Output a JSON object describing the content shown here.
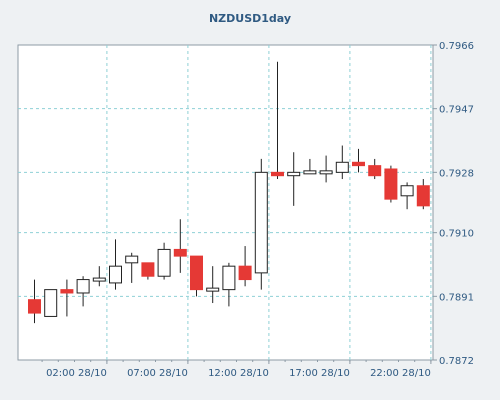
{
  "chart_data": {
    "type": "candlestick",
    "title": "NZDUSD1day",
    "xlabel": "",
    "ylabel": "",
    "ylim": [
      0.7872,
      0.7966
    ],
    "yticks": [
      "0.7872",
      "0.7891",
      "0.7910",
      "0.7928",
      "0.7947",
      "0.7966"
    ],
    "xticks": [
      {
        "index": 4,
        "label": "02:00 28/10"
      },
      {
        "index": 9,
        "label": "07:00 28/10"
      },
      {
        "index": 14,
        "label": "12:00 28/10"
      },
      {
        "index": 19,
        "label": "17:00 28/10"
      },
      {
        "index": 24,
        "label": "22:00 28/10"
      }
    ],
    "grid": true,
    "colors": {
      "up": "#ffffff",
      "down": "#e53935",
      "outline": "#222222",
      "grid": "#8fd0d6",
      "axis": "#2f5a82"
    },
    "candles": [
      {
        "o": 0.789,
        "h": 0.7896,
        "l": 0.7883,
        "c": 0.7886,
        "dir": "down"
      },
      {
        "o": 0.7885,
        "h": 0.7893,
        "l": 0.7885,
        "c": 0.7893,
        "dir": "up"
      },
      {
        "o": 0.7893,
        "h": 0.7896,
        "l": 0.7885,
        "c": 0.7892,
        "dir": "down"
      },
      {
        "o": 0.7892,
        "h": 0.7897,
        "l": 0.7888,
        "c": 0.7896,
        "dir": "up"
      },
      {
        "o": 0.7896,
        "h": 0.79,
        "l": 0.7894,
        "c": 0.7896,
        "dir": "up"
      },
      {
        "o": 0.7895,
        "h": 0.7908,
        "l": 0.7893,
        "c": 0.79,
        "dir": "up"
      },
      {
        "o": 0.7901,
        "h": 0.7904,
        "l": 0.7895,
        "c": 0.7903,
        "dir": "up"
      },
      {
        "o": 0.7901,
        "h": 0.7901,
        "l": 0.7896,
        "c": 0.7897,
        "dir": "down"
      },
      {
        "o": 0.7897,
        "h": 0.7907,
        "l": 0.7896,
        "c": 0.7905,
        "dir": "up"
      },
      {
        "o": 0.7905,
        "h": 0.7914,
        "l": 0.7898,
        "c": 0.7903,
        "dir": "down"
      },
      {
        "o": 0.7903,
        "h": 0.7903,
        "l": 0.7891,
        "c": 0.7893,
        "dir": "down"
      },
      {
        "o": 0.7893,
        "h": 0.79,
        "l": 0.7889,
        "c": 0.7893,
        "dir": "up"
      },
      {
        "o": 0.7893,
        "h": 0.7901,
        "l": 0.7888,
        "c": 0.79,
        "dir": "up"
      },
      {
        "o": 0.79,
        "h": 0.7906,
        "l": 0.7894,
        "c": 0.7896,
        "dir": "down"
      },
      {
        "o": 0.7898,
        "h": 0.7932,
        "l": 0.7893,
        "c": 0.7928,
        "dir": "up"
      },
      {
        "o": 0.7928,
        "h": 0.7961,
        "l": 0.7926,
        "c": 0.7927,
        "dir": "down"
      },
      {
        "o": 0.7927,
        "h": 0.7934,
        "l": 0.7918,
        "c": 0.7928,
        "dir": "up"
      },
      {
        "o": 0.7928,
        "h": 0.7932,
        "l": 0.7928,
        "c": 0.7928,
        "dir": "up"
      },
      {
        "o": 0.7928,
        "h": 0.7933,
        "l": 0.7925,
        "c": 0.7928,
        "dir": "up"
      },
      {
        "o": 0.7928,
        "h": 0.7936,
        "l": 0.7926,
        "c": 0.7931,
        "dir": "up"
      },
      {
        "o": 0.7931,
        "h": 0.7935,
        "l": 0.7928,
        "c": 0.793,
        "dir": "down"
      },
      {
        "o": 0.793,
        "h": 0.7932,
        "l": 0.7926,
        "c": 0.7927,
        "dir": "down"
      },
      {
        "o": 0.7929,
        "h": 0.793,
        "l": 0.7919,
        "c": 0.792,
        "dir": "down"
      },
      {
        "o": 0.7921,
        "h": 0.7925,
        "l": 0.7917,
        "c": 0.7924,
        "dir": "up"
      },
      {
        "o": 0.7924,
        "h": 0.7926,
        "l": 0.7917,
        "c": 0.7918,
        "dir": "down"
      }
    ]
  }
}
